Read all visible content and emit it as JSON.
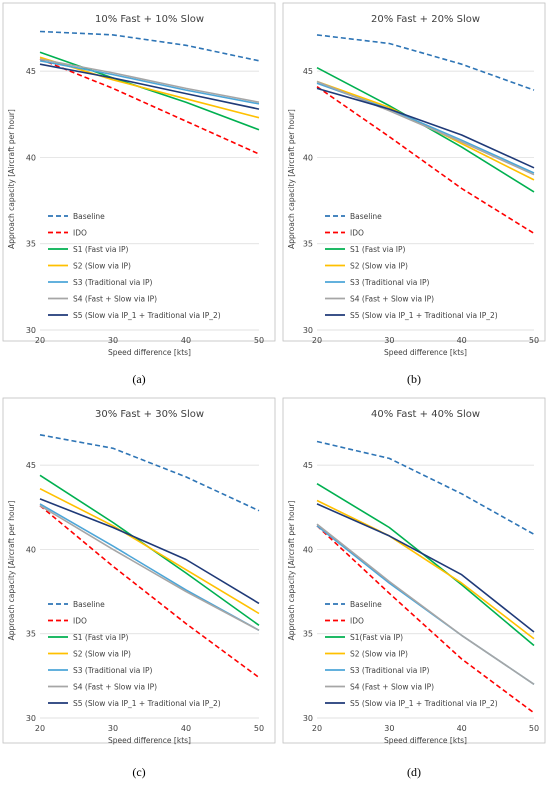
{
  "chart_data": [
    {
      "type": "line",
      "title": "10% Fast + 10% Slow",
      "caption": "(a)",
      "xlabel": "Speed difference [kts]",
      "ylabel": "Approach capacity [Aircraft per hour]",
      "x": [
        20,
        30,
        40,
        50
      ],
      "xticks": [
        "20",
        "30",
        "40",
        "50"
      ],
      "yticks": [
        "30",
        "35",
        "40",
        "45"
      ],
      "ylim": [
        30,
        47.5
      ],
      "legend_position": "bottom-left",
      "series": [
        {
          "name": "Baseline",
          "color": "#2e75b6",
          "dash": "dashed",
          "values": [
            47.3,
            47.1,
            46.5,
            45.6
          ]
        },
        {
          "name": "IDO",
          "color": "#ff0000",
          "dash": "dashed",
          "values": [
            45.7,
            44.0,
            42.1,
            40.2
          ]
        },
        {
          "name": "S1 (Fast via IP)",
          "color": "#00b050",
          "dash": "solid",
          "values": [
            46.1,
            44.6,
            43.2,
            41.6
          ]
        },
        {
          "name": "S2 (Slow via IP)",
          "color": "#ffc000",
          "dash": "solid",
          "values": [
            45.8,
            44.5,
            43.4,
            42.3
          ]
        },
        {
          "name": "S3 (Traditional via IP)",
          "color": "#4da6d8",
          "dash": "solid",
          "values": [
            45.6,
            44.8,
            43.9,
            43.1
          ]
        },
        {
          "name": "S4 (Fast + Slow via IP)",
          "color": "#a6a6a6",
          "dash": "solid",
          "values": [
            45.7,
            44.9,
            44.0,
            43.2
          ]
        },
        {
          "name": "S5 (Slow via IP_1 + Traditional via IP_2)",
          "color": "#1f3a78",
          "dash": "solid",
          "values": [
            45.4,
            44.6,
            43.7,
            42.8
          ]
        }
      ]
    },
    {
      "type": "line",
      "title": "20% Fast + 20% Slow",
      "caption": "(b)",
      "xlabel": "Speed difference [kts]",
      "ylabel": "Approach capacity [Aircraft per hour]",
      "x": [
        20,
        30,
        40,
        50
      ],
      "xticks": [
        "20",
        "30",
        "40",
        "50"
      ],
      "yticks": [
        "30",
        "35",
        "40",
        "45"
      ],
      "ylim": [
        30,
        47.5
      ],
      "legend_position": "bottom-left",
      "series": [
        {
          "name": "Baseline",
          "color": "#2e75b6",
          "dash": "dashed",
          "values": [
            47.1,
            46.6,
            45.4,
            43.9
          ]
        },
        {
          "name": "IDO",
          "color": "#ff0000",
          "dash": "dashed",
          "values": [
            44.1,
            41.2,
            38.2,
            35.6
          ]
        },
        {
          "name": "S1 (Fast via IP)",
          "color": "#00b050",
          "dash": "solid",
          "values": [
            45.2,
            43.0,
            40.6,
            38.0
          ]
        },
        {
          "name": "S2 (Slow via IP)",
          "color": "#ffc000",
          "dash": "solid",
          "values": [
            44.4,
            42.9,
            40.8,
            38.7
          ]
        },
        {
          "name": "S3 (Traditional via IP)",
          "color": "#4da6d8",
          "dash": "solid",
          "values": [
            44.3,
            42.8,
            41.0,
            39.1
          ]
        },
        {
          "name": "S4 (Fast + Slow via IP)",
          "color": "#a6a6a6",
          "dash": "solid",
          "values": [
            44.4,
            42.7,
            40.9,
            39.0
          ]
        },
        {
          "name": "S5 (Slow via IP_1 + Traditional via IP_2)",
          "color": "#1f3a78",
          "dash": "solid",
          "values": [
            44.0,
            42.8,
            41.3,
            39.4
          ]
        }
      ]
    },
    {
      "type": "line",
      "title": "30% Fast + 30% Slow",
      "caption": "(c)",
      "xlabel": "Speed difference [kts]",
      "ylabel": "Approach capacity [Aircraft per hour]",
      "x": [
        20,
        30,
        40,
        50
      ],
      "xticks": [
        "20",
        "30",
        "40",
        "50"
      ],
      "yticks": [
        "30",
        "35",
        "40",
        "45"
      ],
      "ylim": [
        30,
        47.5
      ],
      "legend_position": "bottom-left",
      "series": [
        {
          "name": "Baseline",
          "color": "#2e75b6",
          "dash": "dashed",
          "values": [
            46.8,
            46.0,
            44.3,
            42.3
          ]
        },
        {
          "name": "IDO",
          "color": "#ff0000",
          "dash": "dashed",
          "values": [
            42.6,
            39.0,
            35.6,
            32.4
          ]
        },
        {
          "name": "S1 (Fast via IP)",
          "color": "#00b050",
          "dash": "solid",
          "values": [
            44.4,
            41.6,
            38.6,
            35.5
          ]
        },
        {
          "name": "S2 (Slow via IP)",
          "color": "#ffc000",
          "dash": "solid",
          "values": [
            43.6,
            41.4,
            38.8,
            36.2
          ]
        },
        {
          "name": "S3 (Traditional via IP)",
          "color": "#4da6d8",
          "dash": "solid",
          "values": [
            42.7,
            40.2,
            37.6,
            35.2
          ]
        },
        {
          "name": "S4 (Fast + Slow via IP)",
          "color": "#a6a6a6",
          "dash": "solid",
          "values": [
            42.6,
            40.0,
            37.5,
            35.2
          ]
        },
        {
          "name": "S5 (Slow via IP_1 + Traditional via IP_2)",
          "color": "#1f3a78",
          "dash": "solid",
          "values": [
            43.0,
            41.3,
            39.4,
            36.8
          ]
        }
      ]
    },
    {
      "type": "line",
      "title": "40% Fast + 40% Slow",
      "caption": "(d)",
      "xlabel": "Speed difference [kts]",
      "ylabel": "Approach capacity [Aircraft per hour]",
      "x": [
        20,
        30,
        40,
        50
      ],
      "xticks": [
        "20",
        "30",
        "40",
        "50"
      ],
      "yticks": [
        "30",
        "35",
        "40",
        "45"
      ],
      "ylim": [
        30,
        47.5
      ],
      "legend_position": "bottom-left",
      "series": [
        {
          "name": "Baseline",
          "color": "#2e75b6",
          "dash": "dashed",
          "values": [
            46.4,
            45.4,
            43.3,
            40.9
          ]
        },
        {
          "name": "IDO",
          "color": "#ff0000",
          "dash": "dashed",
          "values": [
            41.4,
            37.4,
            33.5,
            30.3
          ]
        },
        {
          "name": "S1(Fast via IP)",
          "color": "#00b050",
          "dash": "solid",
          "values": [
            43.9,
            41.3,
            37.9,
            34.3
          ]
        },
        {
          "name": "S2 (Slow via IP)",
          "color": "#ffc000",
          "dash": "solid",
          "values": [
            42.9,
            40.8,
            38.0,
            34.7
          ]
        },
        {
          "name": "S3 (Traditional via IP)",
          "color": "#4da6d8",
          "dash": "solid",
          "values": [
            41.4,
            38.0,
            34.9,
            32.0
          ]
        },
        {
          "name": "S4 (Fast + Slow via IP)",
          "color": "#a6a6a6",
          "dash": "solid",
          "values": [
            41.5,
            38.1,
            34.9,
            32.0
          ]
        },
        {
          "name": "S5 (Slow via IP_1 + Traditional via IP_2)",
          "color": "#1f3a78",
          "dash": "solid",
          "values": [
            42.7,
            40.8,
            38.5,
            35.1
          ]
        }
      ]
    }
  ]
}
